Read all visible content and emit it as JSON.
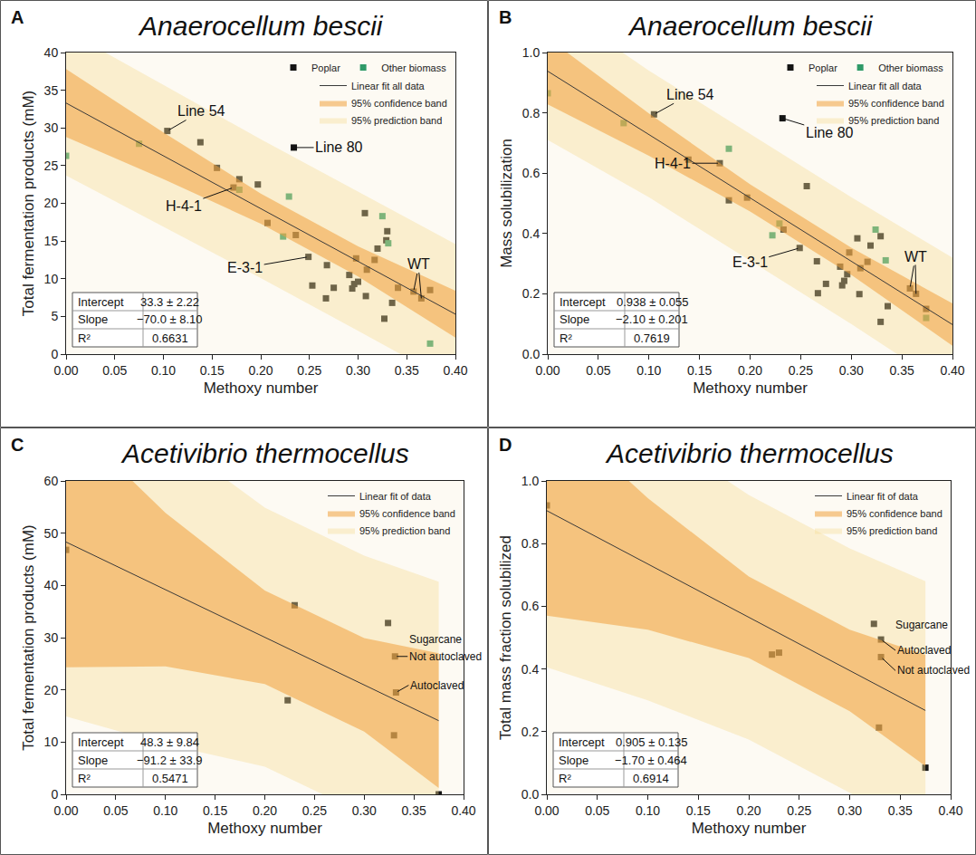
{
  "chart_data": [
    {
      "type": "scatter",
      "panel": "A",
      "title": "Anaerocellum bescii",
      "x_label": "Methoxy number",
      "y_label": "Total fermentation products (mM)",
      "xlim": [
        0,
        0.4
      ],
      "ylim": [
        0,
        40
      ],
      "xticks": [
        {
          "value": 0,
          "label": "0.00"
        },
        {
          "value": 0.05,
          "label": "0.05"
        },
        {
          "value": 0.1,
          "label": "0.10"
        },
        {
          "value": 0.15,
          "label": "0.15"
        },
        {
          "value": 0.2,
          "label": "0.20"
        },
        {
          "value": 0.25,
          "label": "0.25"
        },
        {
          "value": 0.3,
          "label": "0.30"
        },
        {
          "value": 0.35,
          "label": "0.35"
        },
        {
          "value": 0.4,
          "label": "0.40"
        }
      ],
      "yticks": [
        0,
        5,
        10,
        15,
        20,
        25,
        30,
        35,
        40
      ],
      "grid": false,
      "legend": "upper right",
      "series": [
        {
          "name": "Poplar",
          "color": "#141414",
          "marker": "square",
          "x": [
            0.104,
            0.138,
            0.155,
            0.178,
            0.172,
            0.197,
            0.207,
            0.236,
            0.234,
            0.249,
            0.253,
            0.267,
            0.268,
            0.275,
            0.291,
            0.294,
            0.296,
            0.298,
            0.3,
            0.307,
            0.308,
            0.309,
            0.317,
            0.32,
            0.327,
            0.329,
            0.33,
            0.335,
            0.341,
            0.357,
            0.365,
            0.374
          ],
          "values": [
            29.6,
            28.1,
            24.7,
            23.2,
            22.1,
            22.5,
            17.4,
            15.8,
            27.4,
            12.9,
            9.1,
            7.4,
            11.8,
            8.8,
            10.5,
            8.7,
            9.3,
            12.7,
            9.6,
            18.7,
            7.7,
            11.2,
            12.5,
            14.0,
            4.7,
            15.1,
            16.3,
            6.8,
            8.8,
            8.3,
            7.4,
            8.5
          ]
        },
        {
          "name": "Other biomass",
          "color": "#2f9a68",
          "marker": "square",
          "x": [
            0,
            0.075,
            0.178,
            0.223,
            0.229,
            0.325,
            0.331,
            0.374
          ],
          "values": [
            26.3,
            27.9,
            21.8,
            15.6,
            20.9,
            18.3,
            14.7,
            1.4
          ]
        }
      ],
      "fit": {
        "name": "Linear fit all data",
        "color": "#3a3a3a",
        "x": [
          0,
          0.4
        ],
        "values": [
          33.3,
          5.3
        ]
      },
      "confidence_band": {
        "name": "95% confidence band",
        "color": "#f0a03c",
        "x": [
          0,
          0.1,
          0.2,
          0.3,
          0.4
        ],
        "lower": [
          28.8,
          23.2,
          17.3,
          10.3,
          2.2
        ],
        "upper": [
          37.8,
          29.4,
          21.3,
          14.3,
          8.4
        ]
      },
      "prediction_band": {
        "name": "95% prediction band",
        "color": "#f5dc96",
        "x": [
          0,
          0.1,
          0.2,
          0.3,
          0.4
        ],
        "lower": [
          23.7,
          16.9,
          10.1,
          3.1,
          -4.0
        ],
        "upper": [
          42.9,
          35.7,
          28.5,
          21.5,
          14.6
        ]
      },
      "annotations": [
        {
          "text": "Line 54",
          "x": [
            0.104
          ],
          "y": [
            29.6
          ]
        },
        {
          "text": "Line 80",
          "x": [
            0.234
          ],
          "y": [
            27.4
          ]
        },
        {
          "text": "H-4-1",
          "x": [
            0.172
          ],
          "y": [
            22.1
          ]
        },
        {
          "text": "E-3-1",
          "x": [
            0.249
          ],
          "y": [
            12.9
          ]
        },
        {
          "text": "WT",
          "x": [
            0.357,
            0.365
          ],
          "y": [
            8.3,
            7.4
          ]
        }
      ],
      "stats": [
        [
          "Intercept",
          "33.3 ± 2.22"
        ],
        [
          "Slope",
          "−70.0 ± 8.10"
        ],
        [
          "R²",
          "0.6631"
        ]
      ]
    },
    {
      "type": "scatter",
      "panel": "B",
      "title": "Anaerocellum bescii",
      "x_label": "Methoxy number",
      "y_label": "Mass solubilization",
      "xlim": [
        0,
        0.4
      ],
      "ylim": [
        0,
        1
      ],
      "xticks": [
        {
          "value": 0,
          "label": "0.00"
        },
        {
          "value": 0.05,
          "label": "0.05"
        },
        {
          "value": 0.1,
          "label": "0.10"
        },
        {
          "value": 0.15,
          "label": "0.15"
        },
        {
          "value": 0.2,
          "label": "0.20"
        },
        {
          "value": 0.25,
          "label": "0.25"
        },
        {
          "value": 0.3,
          "label": "0.30"
        },
        {
          "value": 0.35,
          "label": "0.35"
        },
        {
          "value": 0.4,
          "label": "0.40"
        }
      ],
      "yticks": [
        {
          "value": 0,
          "label": "0.0"
        },
        {
          "value": 0.2,
          "label": "0.2"
        },
        {
          "value": 0.4,
          "label": "0.4"
        },
        {
          "value": 0.6,
          "label": "0.6"
        },
        {
          "value": 0.8,
          "label": "0.8"
        },
        {
          "value": 1,
          "label": "1.0"
        }
      ],
      "grid": false,
      "legend": "upper right",
      "series": [
        {
          "name": "Poplar",
          "color": "#141414",
          "marker": "square",
          "x": [
            0.105,
            0.139,
            0.17,
            0.179,
            0.197,
            0.233,
            0.232,
            0.256,
            0.249,
            0.266,
            0.267,
            0.275,
            0.289,
            0.291,
            0.293,
            0.296,
            0.298,
            0.306,
            0.308,
            0.309,
            0.316,
            0.319,
            0.329,
            0.329,
            0.336,
            0.358,
            0.364,
            0.374
          ],
          "values": [
            0.795,
            0.645,
            0.633,
            0.51,
            0.519,
            0.413,
            0.782,
            0.557,
            0.352,
            0.308,
            0.202,
            0.233,
            0.29,
            0.228,
            0.243,
            0.265,
            0.337,
            0.384,
            0.199,
            0.285,
            0.306,
            0.36,
            0.391,
            0.107,
            0.159,
            0.218,
            0.2,
            0.15
          ]
        },
        {
          "name": "Other biomass",
          "color": "#2f9a68",
          "marker": "square",
          "x": [
            0,
            0.075,
            0.179,
            0.222,
            0.229,
            0.324,
            0.334,
            0.374
          ],
          "values": [
            0.865,
            0.766,
            0.681,
            0.394,
            0.433,
            0.413,
            0.311,
            0.12
          ]
        }
      ],
      "fit": {
        "name": "Linear fit all data",
        "color": "#3a3a3a",
        "x": [
          0,
          0.4
        ],
        "values": [
          0.938,
          0.098
        ]
      },
      "confidence_band": {
        "name": "95% confidence band",
        "color": "#f0a03c",
        "x": [
          0,
          0.1,
          0.2,
          0.3,
          0.4
        ],
        "lower": [
          0.828,
          0.658,
          0.473,
          0.263,
          0.028
        ],
        "upper": [
          1.048,
          0.798,
          0.563,
          0.353,
          0.168
        ]
      },
      "prediction_band": {
        "name": "95% prediction band",
        "color": "#f5dc96",
        "x": [
          0,
          0.1,
          0.2,
          0.3,
          0.4
        ],
        "lower": [
          0.71,
          0.52,
          0.31,
          0.1,
          -0.12
        ],
        "upper": [
          1.17,
          0.94,
          0.73,
          0.52,
          0.32
        ]
      },
      "annotations": [
        {
          "text": "Line 54",
          "x": [
            0.105
          ],
          "y": [
            0.795
          ]
        },
        {
          "text": "Line 80",
          "x": [
            0.232
          ],
          "y": [
            0.782
          ]
        },
        {
          "text": "H-4-1",
          "x": [
            0.17
          ],
          "y": [
            0.633
          ]
        },
        {
          "text": "E-3-1",
          "x": [
            0.249
          ],
          "y": [
            0.352
          ]
        },
        {
          "text": "WT",
          "x": [
            0.358,
            0.364
          ],
          "y": [
            0.218,
            0.2
          ]
        }
      ],
      "stats": [
        [
          "Intercept",
          "0.938 ± 0.055"
        ],
        [
          "Slope",
          "−2.10 ± 0.201"
        ],
        [
          "R²",
          "0.7619"
        ]
      ]
    },
    {
      "type": "scatter",
      "panel": "C",
      "title": "Acetivibrio thermocellus",
      "x_label": "Methoxy number",
      "y_label": "Total fermentation products (mM)",
      "xlim": [
        0,
        0.4
      ],
      "ylim": [
        0,
        60
      ],
      "xticks": [
        {
          "value": 0,
          "label": "0.00"
        },
        {
          "value": 0.05,
          "label": "0.05"
        },
        {
          "value": 0.1,
          "label": "0.10"
        },
        {
          "value": 0.15,
          "label": "0.15"
        },
        {
          "value": 0.2,
          "label": "0.20"
        },
        {
          "value": 0.25,
          "label": "0.25"
        },
        {
          "value": 0.3,
          "label": "0.30"
        },
        {
          "value": 0.35,
          "label": "0.35"
        },
        {
          "value": 0.4,
          "label": "0.40"
        }
      ],
      "yticks": [
        0,
        10,
        20,
        30,
        40,
        50,
        60
      ],
      "grid": false,
      "legend": "upper right",
      "series": [
        {
          "color": "#141414",
          "marker": "square",
          "x": [
            0,
            0.223,
            0.23,
            0.324,
            0.33,
            0.331,
            0.332,
            0.375
          ],
          "values": [
            46.8,
            18.0,
            36.2,
            32.8,
            11.3,
            26.4,
            19.5,
            0
          ]
        }
      ],
      "fit": {
        "name": "Linear fit of data",
        "color": "#3a3a3a",
        "x": [
          0,
          0.375
        ],
        "values": [
          48.3,
          14.1
        ]
      },
      "confidence_band": {
        "name": "95% confidence band",
        "color": "#f0a03c",
        "x": [
          0,
          0.1,
          0.2,
          0.3,
          0.375
        ],
        "lower": [
          24.3,
          24.5,
          21.1,
          12.0,
          1.2
        ],
        "upper": [
          72.3,
          53.9,
          39.0,
          29.9,
          27.0
        ]
      },
      "prediction_band": {
        "name": "95% prediction band",
        "color": "#f5dc96",
        "x": [
          0,
          0.1,
          0.2,
          0.3,
          0.375
        ],
        "lower": [
          14.9,
          9.6,
          5.3,
          -3.8,
          -12.5
        ],
        "upper": [
          81.7,
          68.8,
          54.9,
          45.7,
          40.7
        ]
      },
      "annotations": [
        {
          "text": "Sugarcane",
          "x": [
            0.331
          ],
          "y": [
            26.4
          ]
        },
        {
          "text": "Not autoclaved",
          "x": [
            0.331
          ],
          "y": [
            26.4
          ]
        },
        {
          "text": "Autoclaved",
          "x": [
            0.332
          ],
          "y": [
            19.5
          ]
        }
      ],
      "stats": [
        [
          "Intercept",
          "48.3 ± 9.84"
        ],
        [
          "Slope",
          "−91.2 ± 33.9"
        ],
        [
          "R²",
          "0.5471"
        ]
      ]
    },
    {
      "type": "scatter",
      "panel": "D",
      "title": "Acetivibrio thermocellus",
      "x_label": "Methoxy number",
      "y_label": "Total mass fraction solubilized",
      "xlim": [
        0,
        0.4
      ],
      "ylim": [
        0,
        1
      ],
      "xticks": [
        {
          "value": 0,
          "label": "0.00"
        },
        {
          "value": 0.05,
          "label": "0.05"
        },
        {
          "value": 0.1,
          "label": "0.10"
        },
        {
          "value": 0.15,
          "label": "0.15"
        },
        {
          "value": 0.2,
          "label": "0.20"
        },
        {
          "value": 0.25,
          "label": "0.25"
        },
        {
          "value": 0.3,
          "label": "0.30"
        },
        {
          "value": 0.35,
          "label": "0.35"
        },
        {
          "value": 0.4,
          "label": "0.40"
        }
      ],
      "yticks": [
        {
          "value": 0,
          "label": "0.0"
        },
        {
          "value": 0.2,
          "label": "0.2"
        },
        {
          "value": 0.4,
          "label": "0.4"
        },
        {
          "value": 0.6,
          "label": "0.6"
        },
        {
          "value": 0.8,
          "label": "0.8"
        },
        {
          "value": 1,
          "label": "1.0"
        }
      ],
      "grid": false,
      "legend": "upper right",
      "series": [
        {
          "color": "#141414",
          "marker": "square",
          "x": [
            0,
            0.223,
            0.23,
            0.324,
            0.331,
            0.331,
            0.329,
            0.375
          ],
          "values": [
            0.922,
            0.446,
            0.452,
            0.544,
            0.494,
            0.438,
            0.213,
            0.085
          ]
        }
      ],
      "fit": {
        "name": "Linear fit of data",
        "color": "#3a3a3a",
        "x": [
          0,
          0.375
        ],
        "values": [
          0.905,
          0.2675
        ]
      },
      "confidence_band": {
        "name": "95% confidence band",
        "color": "#f0a03c",
        "x": [
          0,
          0.1,
          0.2,
          0.3,
          0.375
        ],
        "lower": [
          0.57,
          0.525,
          0.435,
          0.265,
          0.09
        ],
        "upper": [
          1.24,
          0.945,
          0.695,
          0.525,
          0.445
        ]
      },
      "prediction_band": {
        "name": "95% prediction band",
        "color": "#f5dc96",
        "x": [
          0,
          0.1,
          0.2,
          0.3,
          0.375
        ],
        "lower": [
          0.405,
          0.3,
          0.175,
          0.005,
          -0.145
        ],
        "upper": [
          1.405,
          1.17,
          0.955,
          0.785,
          0.68
        ]
      },
      "annotations": [
        {
          "text": "Sugarcane",
          "x": [
            0.331
          ],
          "y": [
            0.494
          ]
        },
        {
          "text": "Autoclaved",
          "x": [
            0.331
          ],
          "y": [
            0.494
          ]
        },
        {
          "text": "Not autoclaved",
          "x": [
            0.331
          ],
          "y": [
            0.438
          ]
        }
      ],
      "stats": [
        [
          "Intercept",
          "0.905 ± 0.135"
        ],
        [
          "Slope",
          "−1.70 ± 0.464"
        ],
        [
          "R²",
          "0.6914"
        ]
      ]
    }
  ]
}
